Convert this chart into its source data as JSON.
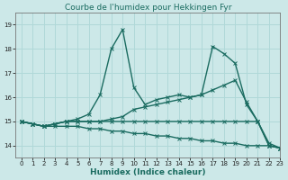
{
  "title": "Courbe de l'humidex pour Hekkingen Fyr",
  "xlabel": "Humidex (Indice chaleur)",
  "xlim": [
    -0.5,
    23
  ],
  "ylim": [
    13.5,
    19.5
  ],
  "yticks": [
    14,
    15,
    16,
    17,
    18,
    19
  ],
  "xticks": [
    0,
    1,
    2,
    3,
    4,
    5,
    6,
    7,
    8,
    9,
    10,
    11,
    12,
    13,
    14,
    15,
    16,
    17,
    18,
    19,
    20,
    21,
    22,
    23
  ],
  "bg_color": "#cce8e8",
  "grid_color": "#b0d8d8",
  "line_color": "#1a6b60",
  "lines": [
    {
      "x": [
        0,
        1,
        2,
        3,
        4,
        5,
        6,
        7,
        8,
        9,
        10,
        11,
        12,
        13,
        14,
        15,
        16,
        17,
        18,
        19,
        20,
        21,
        22,
        23
      ],
      "y": [
        15.0,
        14.9,
        14.8,
        14.9,
        15.0,
        15.1,
        15.3,
        16.1,
        18.0,
        18.8,
        16.4,
        15.7,
        15.9,
        16.0,
        16.1,
        16.0,
        16.1,
        18.1,
        17.8,
        17.4,
        15.7,
        15.0,
        14.0,
        13.9
      ]
    },
    {
      "x": [
        0,
        1,
        2,
        3,
        4,
        5,
        6,
        7,
        8,
        9,
        10,
        11,
        12,
        13,
        14,
        15,
        16,
        17,
        18,
        19,
        20,
        21,
        22,
        23
      ],
      "y": [
        15.0,
        14.9,
        14.8,
        14.9,
        15.0,
        15.0,
        15.0,
        15.0,
        15.1,
        15.2,
        15.5,
        15.6,
        15.7,
        15.8,
        15.9,
        16.0,
        16.1,
        16.3,
        16.5,
        16.7,
        15.8,
        15.0,
        14.0,
        13.9
      ]
    },
    {
      "x": [
        0,
        1,
        2,
        3,
        4,
        5,
        6,
        7,
        8,
        9,
        10,
        11,
        12,
        13,
        14,
        15,
        16,
        17,
        18,
        19,
        20,
        21,
        22,
        23
      ],
      "y": [
        15.0,
        14.9,
        14.8,
        14.9,
        15.0,
        15.0,
        15.0,
        15.0,
        15.0,
        15.0,
        15.0,
        15.0,
        15.0,
        15.0,
        15.0,
        15.0,
        15.0,
        15.0,
        15.0,
        15.0,
        15.0,
        15.0,
        14.1,
        13.9
      ]
    },
    {
      "x": [
        0,
        1,
        2,
        3,
        4,
        5,
        6,
        7,
        8,
        9,
        10,
        11,
        12,
        13,
        14,
        15,
        16,
        17,
        18,
        19,
        20,
        21,
        22,
        23
      ],
      "y": [
        15.0,
        14.9,
        14.8,
        14.8,
        14.8,
        14.8,
        14.7,
        14.7,
        14.6,
        14.6,
        14.5,
        14.5,
        14.4,
        14.4,
        14.3,
        14.3,
        14.2,
        14.2,
        14.1,
        14.1,
        14.0,
        14.0,
        14.0,
        13.9
      ]
    }
  ],
  "marker": "x",
  "marker_size": 3,
  "line_width": 1.0,
  "title_fontsize": 6.5,
  "tick_fontsize": 5,
  "label_fontsize": 6.5
}
